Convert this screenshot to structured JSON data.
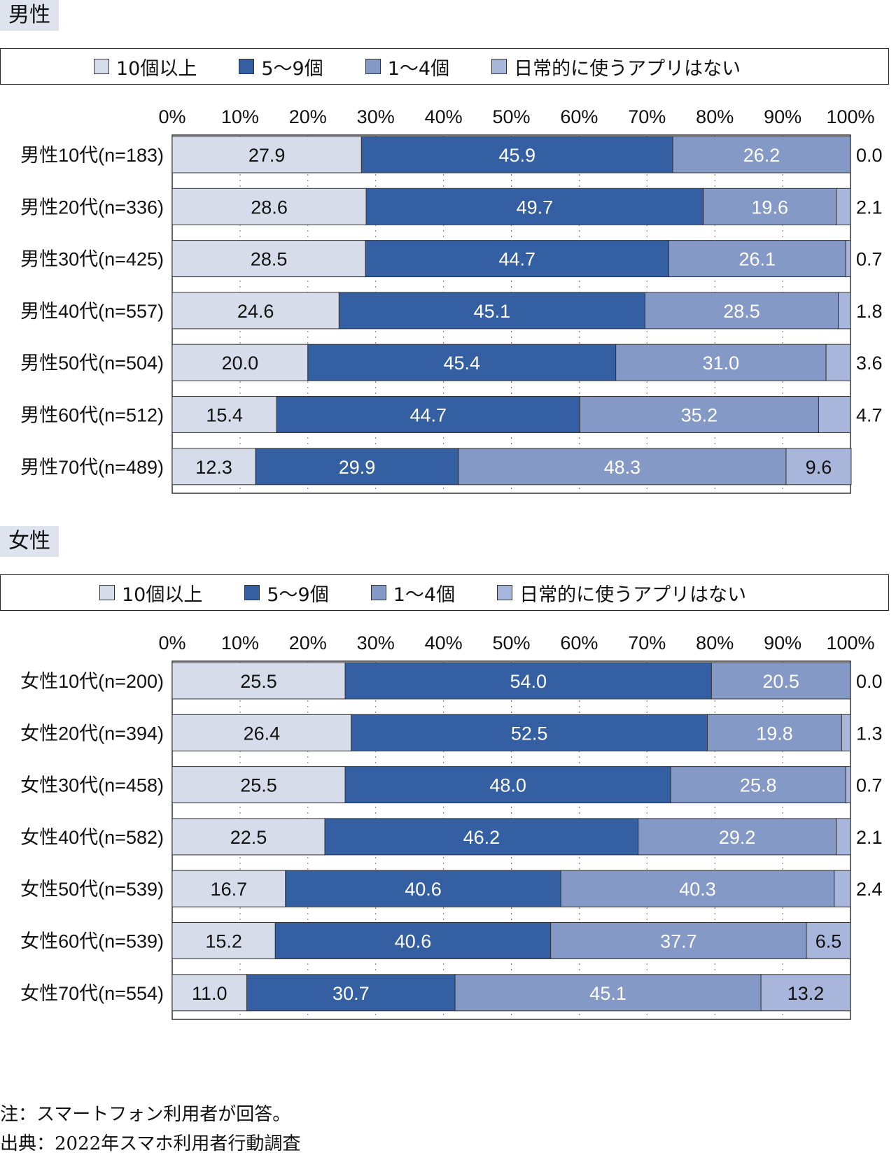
{
  "colors": {
    "c1": "#d6dcea",
    "c2": "#3460a3",
    "c3": "#8599c7",
    "c4": "#a9b6db",
    "section_bg": "#dfe3ee"
  },
  "axis_ticks": [
    "0%",
    "10%",
    "20%",
    "30%",
    "40%",
    "50%",
    "60%",
    "70%",
    "80%",
    "90%",
    "100%"
  ],
  "legend": [
    "10個以上",
    "5〜9個",
    "1〜4個",
    "日常的に使うアプリはない"
  ],
  "notes": {
    "note": "注：スマートフォン利用者が回答。",
    "source": "出典：2022年スマホ利用者行動調査"
  },
  "chart_data": [
    {
      "type": "bar",
      "stacked": true,
      "orientation": "horizontal",
      "title": "男性",
      "xlim": [
        0,
        100
      ],
      "categories": [
        "男性10代(n=183)",
        "男性20代(n=336)",
        "男性30代(n=425)",
        "男性40代(n=557)",
        "男性50代(n=504)",
        "男性60代(n=512)",
        "男性70代(n=489)"
      ],
      "series": [
        {
          "name": "10個以上",
          "values": [
            27.9,
            28.6,
            28.5,
            24.6,
            20.0,
            15.4,
            12.3
          ]
        },
        {
          "name": "5〜9個",
          "values": [
            45.9,
            49.7,
            44.7,
            45.1,
            45.4,
            44.7,
            29.9
          ]
        },
        {
          "name": "1〜4個",
          "values": [
            26.2,
            19.6,
            26.1,
            28.5,
            31.0,
            35.2,
            48.3
          ]
        },
        {
          "name": "日常的に使うアプリはない",
          "values": [
            0.0,
            2.1,
            0.7,
            1.8,
            3.6,
            4.7,
            9.6
          ]
        }
      ]
    },
    {
      "type": "bar",
      "stacked": true,
      "orientation": "horizontal",
      "title": "女性",
      "xlim": [
        0,
        100
      ],
      "categories": [
        "女性10代(n=200)",
        "女性20代(n=394)",
        "女性30代(n=458)",
        "女性40代(n=582)",
        "女性50代(n=539)",
        "女性60代(n=539)",
        "女性70代(n=554)"
      ],
      "series": [
        {
          "name": "10個以上",
          "values": [
            25.5,
            26.4,
            25.5,
            22.5,
            16.7,
            15.2,
            11.0
          ]
        },
        {
          "name": "5〜9個",
          "values": [
            54.0,
            52.5,
            48.0,
            46.2,
            40.6,
            40.6,
            30.7
          ]
        },
        {
          "name": "1〜4個",
          "values": [
            20.5,
            19.8,
            25.8,
            29.2,
            40.3,
            37.7,
            45.1
          ]
        },
        {
          "name": "日常的に使うアプリはない",
          "values": [
            0.0,
            1.3,
            0.7,
            2.1,
            2.4,
            6.5,
            13.2
          ]
        }
      ]
    }
  ]
}
